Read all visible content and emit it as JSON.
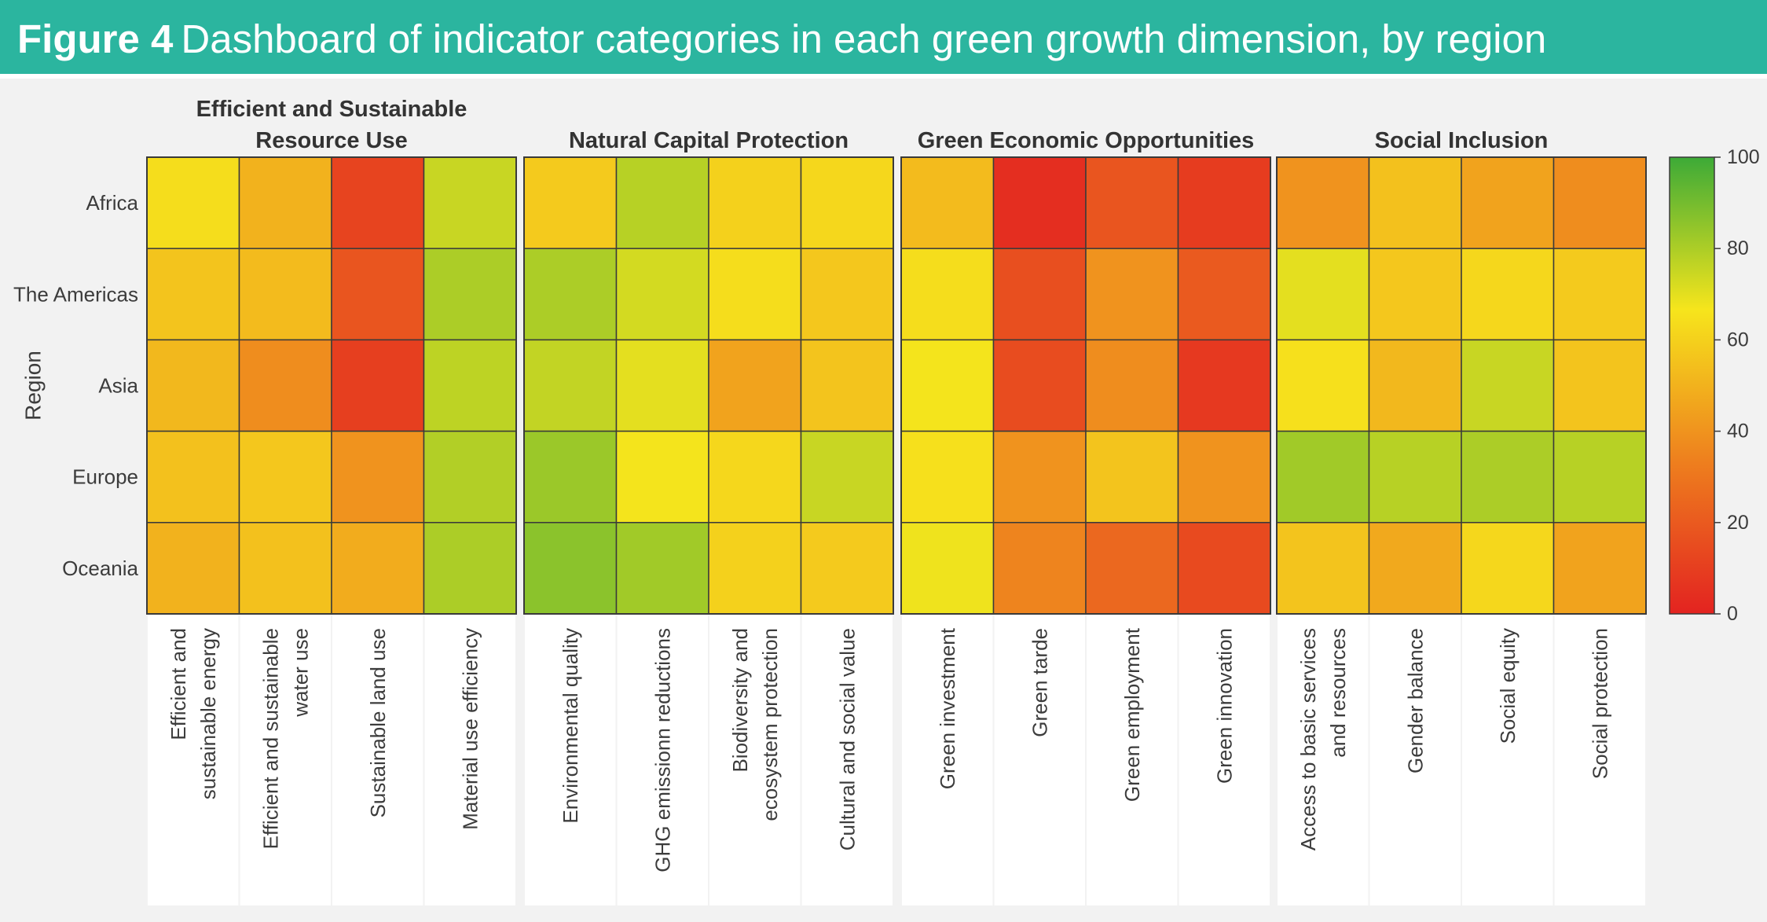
{
  "figure": {
    "label": "Figure 4",
    "title": "Dashboard of indicator categories in each green growth dimension, by region"
  },
  "colors": {
    "header_bg": "#2bb59f",
    "scale": [
      "#e32320",
      "#ee7f1e",
      "#f6e51c",
      "#3daa37"
    ]
  },
  "chart_data": {
    "type": "heatmap",
    "ylabel": "Region",
    "rows": [
      "Africa",
      "The Americas",
      "Asia",
      "Europe",
      "Oceania"
    ],
    "groups": [
      {
        "name": "Efficient and Sustainable Resource Use",
        "name_lines": [
          "Efficient and Sustainable",
          "Resource Use"
        ],
        "columns": [
          {
            "label": "Efficient and sustainable energy",
            "label_lines": [
              "Efficient and",
              "sustainable energy"
            ],
            "values": [
              64,
              56,
              52,
              55,
              50
            ]
          },
          {
            "label": "Efficient and sustainable water use",
            "label_lines": [
              "Efficient and sustainable",
              "water use"
            ],
            "values": [
              50,
              53,
              38,
              57,
              55
            ]
          },
          {
            "label": "Sustainable land use",
            "label_lines": [
              "Sustainable land use"
            ],
            "values": [
              12,
              18,
              10,
              40,
              48
            ]
          },
          {
            "label": "Material use efficiency",
            "label_lines": [
              "Material use efficiency"
            ],
            "values": [
              75,
              80,
              77,
              79,
              80
            ]
          }
        ]
      },
      {
        "name": "Natural Capital Protection",
        "name_lines": [
          "Natural Capital Protection"
        ],
        "columns": [
          {
            "label": "Environmental quality",
            "label_lines": [
              "Environmental quality"
            ],
            "values": [
              58,
              80,
              76,
              83,
              86
            ]
          },
          {
            "label": "GHG emissionn reductions",
            "label_lines": [
              "GHG emissionn reductions"
            ],
            "values": [
              78,
              73,
              70,
              67,
              82
            ]
          },
          {
            "label": "Biodiversity and ecosystem protection",
            "label_lines": [
              "Biodiversity and",
              "ecosystem protection"
            ],
            "values": [
              60,
              64,
              45,
              62,
              60
            ]
          },
          {
            "label": "Cultural and social value",
            "label_lines": [
              "Cultural and social value"
            ],
            "values": [
              62,
              57,
              56,
              75,
              58
            ]
          }
        ]
      },
      {
        "name": "Green Economic Opportunities",
        "name_lines": [
          "Green Economic Opportunities"
        ],
        "columns": [
          {
            "label": "Green investment",
            "label_lines": [
              "Green investment"
            ],
            "values": [
              53,
              64,
              67,
              65,
              68
            ]
          },
          {
            "label": "Green tarde",
            "label_lines": [
              "Green tarde"
            ],
            "values": [
              4,
              16,
              15,
              40,
              35
            ]
          },
          {
            "label": "Green employment",
            "label_lines": [
              "Green employment"
            ],
            "values": [
              18,
              40,
              38,
              56,
              25
            ]
          },
          {
            "label": "Green innovation",
            "label_lines": [
              "Green innovation"
            ],
            "values": [
              9,
              20,
              8,
              40,
              14
            ]
          }
        ]
      },
      {
        "name": "Social Inclusion",
        "name_lines": [
          "Social Inclusion"
        ],
        "columns": [
          {
            "label": "Access to basic services and resources",
            "label_lines": [
              "Access to basic services",
              "and resources"
            ],
            "values": [
              40,
              70,
              65,
              82,
              56
            ]
          },
          {
            "label": "Gender balance",
            "label_lines": [
              "Gender balance"
            ],
            "values": [
              55,
              57,
              52,
              78,
              47
            ]
          },
          {
            "label": "Social equity",
            "label_lines": [
              "Social equity"
            ],
            "values": [
              45,
              62,
              75,
              80,
              62
            ]
          },
          {
            "label": "Social protection",
            "label_lines": [
              "Social protection"
            ],
            "values": [
              38,
              58,
              56,
              78,
              45
            ]
          }
        ]
      }
    ],
    "colorbar": {
      "min": 0,
      "max": 100,
      "ticks": [
        0,
        20,
        40,
        60,
        80,
        100
      ]
    },
    "grid": false
  }
}
